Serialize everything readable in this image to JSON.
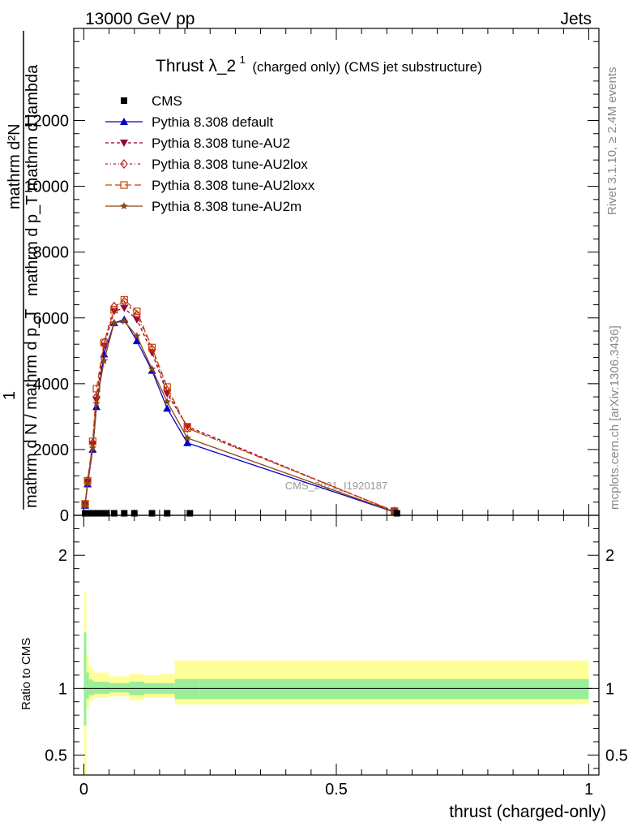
{
  "header": {
    "left": "13000 GeV pp",
    "right": "Jets"
  },
  "side_labels": {
    "rivet": "Rivet 3.1.10, ≥ 2.4M events",
    "mcplots": "mcplots.cern.ch [arXiv:1306.3436]"
  },
  "chart_data": [
    {
      "type": "line",
      "title": "Thrust λ_2¹ (charged only) (CMS jet substructure)",
      "title_main": "Thrust λ_2",
      "title_sup": "1",
      "title_rest": "(charged only) (CMS jet substructure)",
      "watermark": "CMS_2021_I1920187",
      "ylabel_line1": "mathrm d²N",
      "ylabel_line2": "mathrm d p_T mathrm d lambda",
      "ylabel_frac_top": "1",
      "ylabel_frac_bottom": "mathrm d N / mathrm d p_T",
      "ylim": [
        0,
        14800
      ],
      "yticks": [
        0,
        2000,
        4000,
        6000,
        8000,
        10000,
        12000
      ],
      "ytick_labels": [
        "0",
        "2000",
        "4000",
        "6000",
        "8000",
        "10000",
        "12000"
      ],
      "xlim": [
        -0.02,
        1.02
      ],
      "legend": [
        "CMS",
        "Pythia 8.308 default",
        "Pythia 8.308 tune-AU2",
        "Pythia 8.308 tune-AU2lox",
        "Pythia 8.308 tune-AU2loxx",
        "Pythia 8.308 tune-AU2m"
      ],
      "legend_position": "top-left",
      "data_points": {
        "name": "CMS",
        "x": [
          0.0025,
          0.0075,
          0.0125,
          0.0175,
          0.025,
          0.035,
          0.045,
          0.06,
          0.08,
          0.1,
          0.135,
          0.165,
          0.21,
          0.62
        ],
        "y": [
          12,
          12,
          12,
          12,
          12,
          12,
          12,
          12,
          12,
          12,
          12,
          12,
          12,
          12
        ]
      },
      "series": [
        {
          "name": "Pythia 8.308 default",
          "color": "#0000cc",
          "marker": "triangle-up",
          "dash": "solid",
          "x": [
            0.0025,
            0.0075,
            0.0175,
            0.025,
            0.04,
            0.06,
            0.08,
            0.105,
            0.135,
            0.165,
            0.205,
            0.615
          ],
          "y": [
            300,
            950,
            2000,
            3300,
            4900,
            5850,
            5950,
            5300,
            4400,
            3250,
            2200,
            100
          ]
        },
        {
          "name": "Pythia 8.308 tune-AU2",
          "color": "#990033",
          "marker": "triangle-down",
          "dash": "dashed",
          "x": [
            0.0025,
            0.0075,
            0.0175,
            0.025,
            0.04,
            0.06,
            0.08,
            0.105,
            0.135,
            0.165,
            0.205,
            0.615
          ],
          "y": [
            330,
            1020,
            2150,
            3500,
            5150,
            6200,
            6300,
            5950,
            4950,
            3700,
            2700,
            110
          ]
        },
        {
          "name": "Pythia 8.308 tune-AU2lox",
          "color": "#b22222",
          "marker": "diamond-open",
          "dash": "dash-dot",
          "x": [
            0.0025,
            0.0075,
            0.0175,
            0.025,
            0.04,
            0.06,
            0.08,
            0.105,
            0.135,
            0.165,
            0.205,
            0.615
          ],
          "y": [
            340,
            1050,
            2200,
            3600,
            5250,
            6350,
            6500,
            6100,
            5050,
            3800,
            2650,
            120
          ]
        },
        {
          "name": "Pythia 8.308 tune-AU2loxx",
          "color": "#cc4400",
          "marker": "square-open",
          "dash": "long-dash",
          "x": [
            0.0025,
            0.0075,
            0.0175,
            0.025,
            0.04,
            0.06,
            0.08,
            0.105,
            0.135,
            0.165,
            0.205,
            0.615
          ],
          "y": [
            350,
            1050,
            2250,
            3850,
            5250,
            6250,
            6550,
            6200,
            5100,
            3900,
            2650,
            130
          ]
        },
        {
          "name": "Pythia 8.308 tune-AU2m",
          "color": "#8b4513",
          "marker": "star",
          "dash": "solid",
          "x": [
            0.0025,
            0.0075,
            0.0175,
            0.025,
            0.04,
            0.06,
            0.08,
            0.105,
            0.135,
            0.165,
            0.205,
            0.615
          ],
          "y": [
            310,
            980,
            2050,
            3400,
            4700,
            5850,
            5900,
            5450,
            4450,
            3450,
            2350,
            105
          ]
        }
      ]
    },
    {
      "type": "area",
      "ylabel": "Ratio to CMS",
      "xlabel": "thrust (charged-only)",
      "xlim": [
        -0.02,
        1.02
      ],
      "xticks": [
        0,
        0.5,
        1
      ],
      "xtick_labels": [
        "0",
        "0.5",
        "1"
      ],
      "ylim": [
        0.35,
        2.3
      ],
      "yticks": [
        0.5,
        1,
        2
      ],
      "ytick_labels": [
        "0.5",
        "1",
        "2"
      ],
      "reference_line": 1,
      "bands": {
        "bin_edges": [
          0,
          0.005,
          0.01,
          0.015,
          0.02,
          0.03,
          0.04,
          0.05,
          0.07,
          0.09,
          0.12,
          0.15,
          0.18,
          0.23,
          1.0
        ],
        "stat_low": [
          0.72,
          0.92,
          0.95,
          0.95,
          0.96,
          0.96,
          0.96,
          0.97,
          0.97,
          0.95,
          0.96,
          0.96,
          0.92,
          0.92
        ],
        "stat_high": [
          1.42,
          1.12,
          1.07,
          1.06,
          1.05,
          1.05,
          1.05,
          1.04,
          1.04,
          1.05,
          1.04,
          1.04,
          1.07,
          1.07
        ],
        "total_low": [
          0.35,
          0.85,
          0.9,
          0.91,
          0.93,
          0.93,
          0.93,
          0.94,
          0.94,
          0.91,
          0.93,
          0.93,
          0.88,
          0.88
        ],
        "total_high": [
          1.72,
          1.25,
          1.17,
          1.15,
          1.12,
          1.12,
          1.12,
          1.09,
          1.09,
          1.11,
          1.1,
          1.11,
          1.21,
          1.21
        ]
      }
    }
  ]
}
